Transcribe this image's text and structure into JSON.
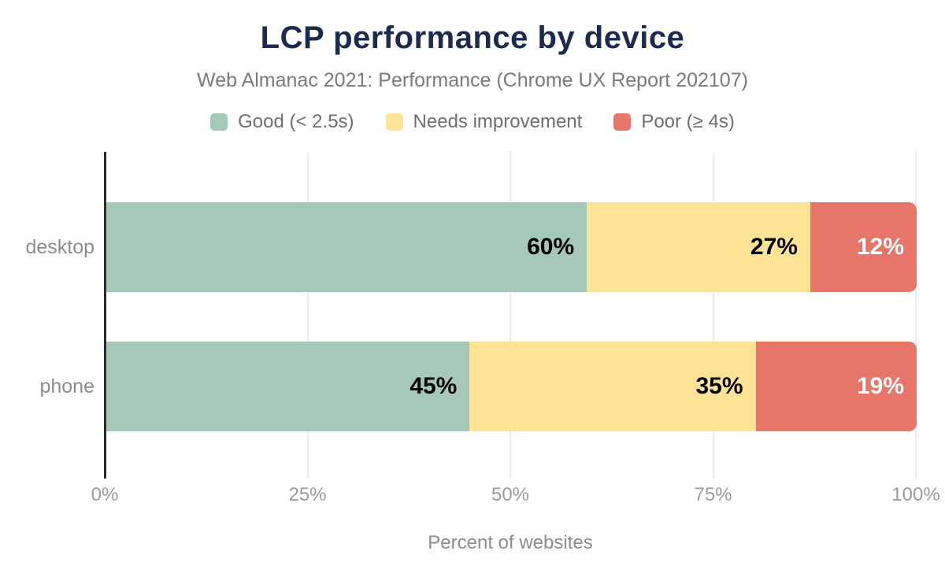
{
  "title": "LCP performance by device",
  "subtitle": "Web Almanac 2021: Performance (Chrome UX Report 202107)",
  "colors": {
    "title_text": "#1b2a4e",
    "muted_text": "#8c8c8c",
    "axis_line": "#2b2b2b",
    "gridline": "#ededed",
    "good": "#a6c8b6",
    "needs_improvement": "#fce396",
    "poor": "#e8756a"
  },
  "legend": [
    {
      "label": "Good (< 2.5s)",
      "color": "#a6c8b6"
    },
    {
      "label": "Needs improvement",
      "color": "#fce396"
    },
    {
      "label": "Poor (≥ 4s)",
      "color": "#e8756a"
    }
  ],
  "chart_data": {
    "type": "bar",
    "orientation": "horizontal",
    "stacked": true,
    "title": "LCP performance by device",
    "subtitle": "Web Almanac 2021: Performance (Chrome UX Report 202107)",
    "categories": [
      "desktop",
      "phone"
    ],
    "series": [
      {
        "name": "Good (< 2.5s)",
        "color": "#a6c8b6",
        "label_color": "#000000",
        "values": [
          60,
          45
        ]
      },
      {
        "name": "Needs improvement",
        "color": "#fce396",
        "label_color": "#000000",
        "values": [
          27,
          35
        ]
      },
      {
        "name": "Poor (≥ 4s)",
        "color": "#e8756a",
        "label_color": "#ffffff",
        "values": [
          12,
          19
        ]
      }
    ],
    "value_suffix": "%",
    "xlabel": "Percent of websites",
    "ylabel": "",
    "x_ticks": [
      "0%",
      "25%",
      "50%",
      "75%",
      "100%"
    ],
    "xlim": [
      0,
      100
    ],
    "grid": true,
    "legend_position": "top"
  }
}
